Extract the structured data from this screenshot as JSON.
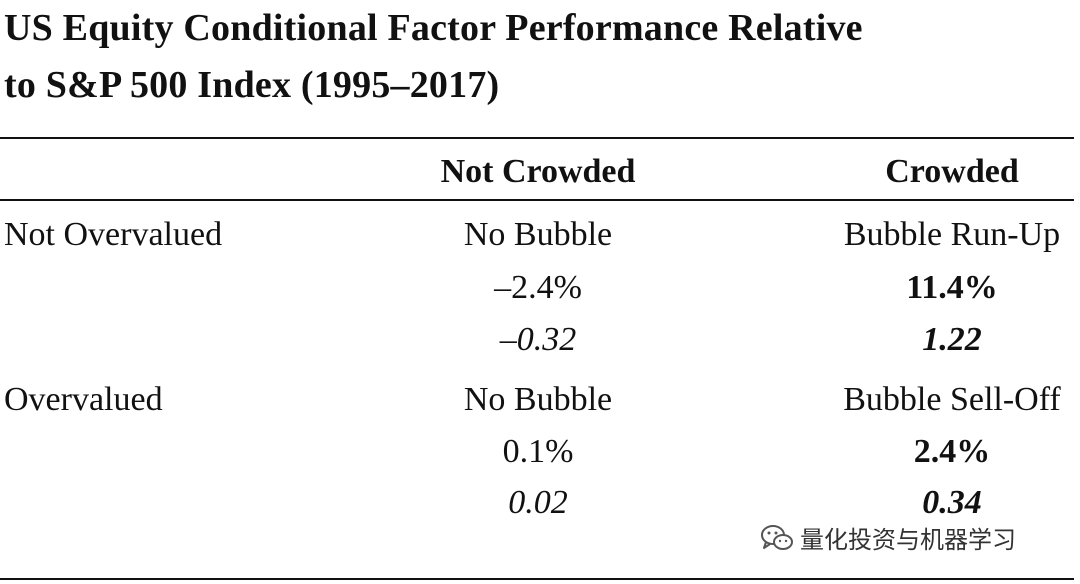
{
  "title": {
    "line1": "US Equity Conditional Factor Performance Relative",
    "line2": "to S&P 500 Index (1995–2017)"
  },
  "table": {
    "headers": [
      "",
      "Not Crowded",
      "Crowded"
    ],
    "rows": [
      {
        "label": "Not Overvalued",
        "not_crowded": {
          "regime": "No Bubble",
          "return": "–2.4%",
          "ratio": "–0.32"
        },
        "crowded": {
          "regime": "Bubble Run-Up",
          "return": "11.4%",
          "ratio": "1.22"
        }
      },
      {
        "label": "Overvalued",
        "not_crowded": {
          "regime": "No Bubble",
          "return": "0.1%",
          "ratio": "0.02"
        },
        "crowded": {
          "regime": "Bubble Sell-Off",
          "return": "2.4%",
          "ratio": "0.34"
        }
      }
    ]
  },
  "watermark": {
    "icon": "wechat-icon",
    "text": "量化投资与机器学习"
  }
}
